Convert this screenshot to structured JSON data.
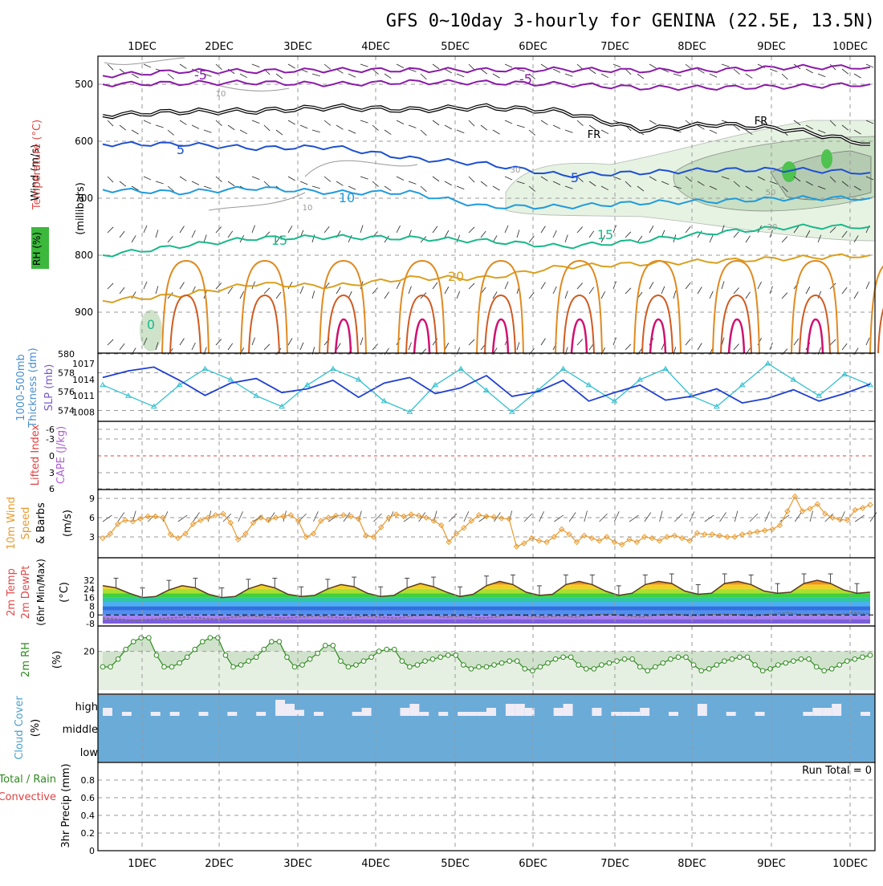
{
  "chart_data": {
    "title": "GFS 0~10day 3-hourly for GENINA (22.5E, 13.5N)",
    "x_tick_labels": [
      "1DEC",
      "2DEC",
      "3DEC",
      "4DEC",
      "5DEC",
      "6DEC",
      "7DEC",
      "8DEC",
      "9DEC",
      "10DEC"
    ],
    "panels": [
      {
        "id": "upper",
        "type": "contour",
        "ylabel_wind": "Wind (m/s)",
        "ylabel_temp": "Temperature (°C)",
        "ylabel_rh": "RH (%)",
        "ylabel_units": "(millibars)",
        "yticks": [
          "500",
          "600",
          "700",
          "800",
          "900"
        ],
        "contour_labels": [
          "-5",
          "-5",
          "FR",
          "FR",
          "5",
          "5",
          "10",
          "15",
          "15",
          "20",
          "0",
          "10",
          "10",
          "30",
          "50",
          "30"
        ],
        "temperature_isotherms": [
          {
            "label": "-5",
            "color": "#8a1aa8",
            "p": [
              485,
              477,
              477,
              475,
              475,
              475,
              474,
              476,
              475,
              470,
              470
            ]
          },
          {
            "label": "-5",
            "color": "#8a1aa8",
            "p": [
              500,
              498,
              497,
              500,
              496,
              497,
              500,
              506,
              506,
              504,
              500
            ]
          },
          {
            "label": "FR",
            "color": "#000000",
            "p": [
              555,
              548,
              547,
              540,
              545,
              540,
              548,
              580,
              570,
              580,
              605
            ]
          },
          {
            "label": "5",
            "color": "#1e50d0",
            "p": [
              605,
              605,
              612,
              610,
              630,
              640,
              660,
              655,
              650,
              650,
              655
            ]
          },
          {
            "label": "10",
            "color": "#1f9bdc",
            "p": [
              685,
              690,
              682,
              690,
              690,
              715,
              715,
              708,
              705,
              700,
              700
            ]
          },
          {
            "label": "15",
            "color": "#18b88a",
            "p": [
              800,
              784,
              770,
              768,
              770,
              775,
              785,
              775,
              760,
              750,
              750
            ]
          },
          {
            "label": "20",
            "color": "#d9a020",
            "p": [
              880,
              870,
              850,
              855,
              840,
              840,
              820,
              815,
              810,
              805,
              800
            ]
          }
        ]
      },
      {
        "id": "thickness_slp",
        "type": "line",
        "ylabel_left": "1000-500mb Thickness (dm)",
        "ylabel_right": "SLP (mb)",
        "left_ticks": [
          "580",
          "578",
          "576",
          "574"
        ],
        "right_ticks": [
          "1017",
          "1014",
          "1011",
          "1008"
        ],
        "series": [
          {
            "name": "1000-500mb Thickness",
            "color": "#1f3fd0",
            "values": [
              577.5,
              578.2,
              578.6,
              577.2,
              575.6,
              576.9,
              577.4,
              575.9,
              576.3,
              577.2,
              575.4,
              576.9,
              577.5,
              575.8,
              576.4,
              577.7,
              575.5,
              576.0,
              577.2,
              575.0,
              575.9,
              576.7,
              575.1,
              575.5,
              576.3,
              574.8,
              575.3,
              576.2,
              575.0,
              575.8,
              576.8
            ]
          },
          {
            "name": "SLP",
            "color": "#33c0d0",
            "values": [
              1013,
              1011,
              1009,
              1013,
              1016,
              1014,
              1011,
              1009,
              1013,
              1016,
              1014,
              1010,
              1008,
              1013,
              1016,
              1012,
              1008,
              1012,
              1016,
              1013,
              1010,
              1014,
              1016,
              1011,
              1009,
              1013,
              1017,
              1014,
              1011,
              1015,
              1013
            ]
          }
        ]
      },
      {
        "id": "cape_li",
        "type": "line",
        "ylabel_left": "Lifted Index",
        "ylabel_right": "CAPE (J/kg)",
        "yticks": [
          "-6",
          "-3",
          "0",
          "3",
          "6"
        ]
      },
      {
        "id": "wind10m",
        "type": "line",
        "ylabel_a": "10m Wind",
        "ylabel_b": "Speed & Barbs",
        "units": "(m/s)",
        "yticks": [
          "9",
          "6",
          "3"
        ],
        "series": [
          {
            "name": "10m Wind Speed",
            "color": "#e89a30",
            "values": [
              2.8,
              3.5,
              5.0,
              5.6,
              5.4,
              5.8,
              6.2,
              6.2,
              6.0,
              3.4,
              2.8,
              3.5,
              5.0,
              5.6,
              6.0,
              6.4,
              6.6,
              5.2,
              2.6,
              3.5,
              5.2,
              6.0,
              5.6,
              6.0,
              6.2,
              6.4,
              5.5,
              3.0,
              3.5,
              5.5,
              6.0,
              6.3,
              6.4,
              6.2,
              5.8,
              3.2,
              3.0,
              4.5,
              6.0,
              6.5,
              6.2,
              6.5,
              6.3,
              6.0,
              5.5,
              4.8,
              2.2,
              3.5,
              4.4,
              5.5,
              6.4,
              6.2,
              6.1,
              5.9,
              5.8,
              1.5,
              2.0,
              2.8,
              2.4,
              2.2,
              3.0,
              4.2,
              3.4,
              2.2,
              3.2,
              2.8,
              2.4,
              3.0,
              2.2,
              1.8,
              2.6,
              2.2,
              3.0,
              2.8,
              2.4,
              3.0,
              3.2,
              2.8,
              2.4,
              3.6,
              3.4,
              3.4,
              3.2,
              3.0,
              3.0,
              3.4,
              3.6,
              3.8,
              4.0,
              4.2,
              4.8,
              7.0,
              9.3,
              7.0,
              7.4,
              8.1,
              6.6,
              6.0,
              5.7,
              5.6,
              7.2,
              7.5,
              8.0
            ]
          }
        ]
      },
      {
        "id": "temp2m",
        "type": "area",
        "ylabel_a": "2m Temp",
        "ylabel_b": "2m DewPt",
        "ylabel_c": "(6hr Min/Max)",
        "units": "(°C)",
        "yticks": [
          "32",
          "24",
          "16",
          "8",
          "0",
          "-8"
        ],
        "series": [
          {
            "name": "2m Temp",
            "color": "#5a3a20",
            "values": [
              27,
              25,
              20,
              16,
              17,
              23,
              27,
              25,
              19,
              16,
              17,
              24,
              28,
              25,
              19,
              17,
              18,
              24,
              28,
              26,
              20,
              17,
              18,
              25,
              29,
              26,
              21,
              17,
              19,
              27,
              31,
              28,
              21,
              18,
              19,
              28,
              31,
              28,
              22,
              18,
              20,
              28,
              31,
              29,
              22,
              19,
              20,
              29,
              31,
              28,
              22,
              20,
              21,
              29,
              32,
              29,
              23,
              20,
              21
            ]
          },
          {
            "name": "2m DewPt",
            "color": "#707070",
            "values": [
              -3,
              -4,
              -5,
              -4,
              -3,
              -2,
              -3,
              -4,
              -2,
              -1,
              -2,
              -3,
              -2,
              -1,
              -2,
              -3,
              -1,
              -2,
              -3,
              -1,
              0,
              -2,
              -1,
              -3,
              -2,
              0,
              -1,
              -2,
              -1,
              -2,
              0,
              1,
              -1,
              -2,
              0,
              1,
              -1,
              0,
              1,
              0,
              -1,
              1,
              2,
              0,
              1,
              0,
              2,
              1
            ]
          }
        ]
      },
      {
        "id": "rh2m",
        "type": "area",
        "ylabel": "2m RH",
        "units": "(%)",
        "yticks": [
          "20"
        ],
        "series": [
          {
            "name": "2m RH",
            "color": "#2f8a1f",
            "values": [
              12,
              12,
              16,
              21,
              25,
              27,
              27,
              18,
              12,
              12,
              14,
              17,
              21,
              25,
              27,
              27,
              18,
              12,
              13,
              15,
              17,
              21,
              25,
              25,
              17,
              12,
              13,
              16,
              19,
              23,
              23,
              15,
              12,
              13,
              15,
              17,
              20,
              21,
              21,
              15,
              12,
              13,
              15,
              16,
              17,
              18,
              18,
              13,
              11,
              12,
              12,
              13,
              14,
              15,
              15,
              11,
              10,
              12,
              14,
              16,
              17,
              17,
              13,
              11,
              11,
              13,
              14,
              15,
              16,
              16,
              12,
              10,
              12,
              14,
              16,
              17,
              17,
              13,
              10,
              11,
              13,
              15,
              16,
              17,
              17,
              13,
              10,
              11,
              13,
              14,
              15,
              16,
              16,
              12,
              10,
              11,
              13,
              15,
              16,
              17,
              18
            ]
          }
        ]
      },
      {
        "id": "cloud",
        "type": "bar",
        "ylabel": "Cloud Cover",
        "units": "(%)",
        "level_labels": [
          "high",
          "middle",
          "low"
        ],
        "series": [
          {
            "name": "high cloud cover",
            "color": "#f0ecf6",
            "values": [
              20,
              0,
              10,
              0,
              0,
              10,
              0,
              10,
              0,
              0,
              10,
              0,
              0,
              10,
              0,
              0,
              10,
              0,
              40,
              30,
              15,
              0,
              10,
              0,
              0,
              0,
              10,
              20,
              0,
              0,
              0,
              20,
              30,
              10,
              0,
              10,
              0,
              10,
              10,
              10,
              20,
              0,
              30,
              30,
              20,
              0,
              0,
              20,
              30,
              0,
              0,
              20,
              0,
              10,
              10,
              10,
              20,
              0,
              0,
              10,
              0,
              0,
              30,
              0,
              0,
              10,
              0,
              0,
              10,
              0,
              0,
              0,
              0,
              10,
              20,
              20,
              30,
              0,
              0,
              10
            ]
          }
        ]
      },
      {
        "id": "precip",
        "type": "bar",
        "ylabel_a": "Total / Rain",
        "ylabel_b": "Convective",
        "ylabel_c": "3hr Precip (mm)",
        "annotation": "Run Total = 0",
        "yticks": [
          "0.8",
          "0.6",
          "0.4",
          "0.2",
          "0"
        ],
        "series": [
          {
            "name": "3hr Precip",
            "values": [
              0,
              0,
              0,
              0,
              0,
              0,
              0,
              0,
              0,
              0
            ]
          }
        ]
      }
    ]
  }
}
